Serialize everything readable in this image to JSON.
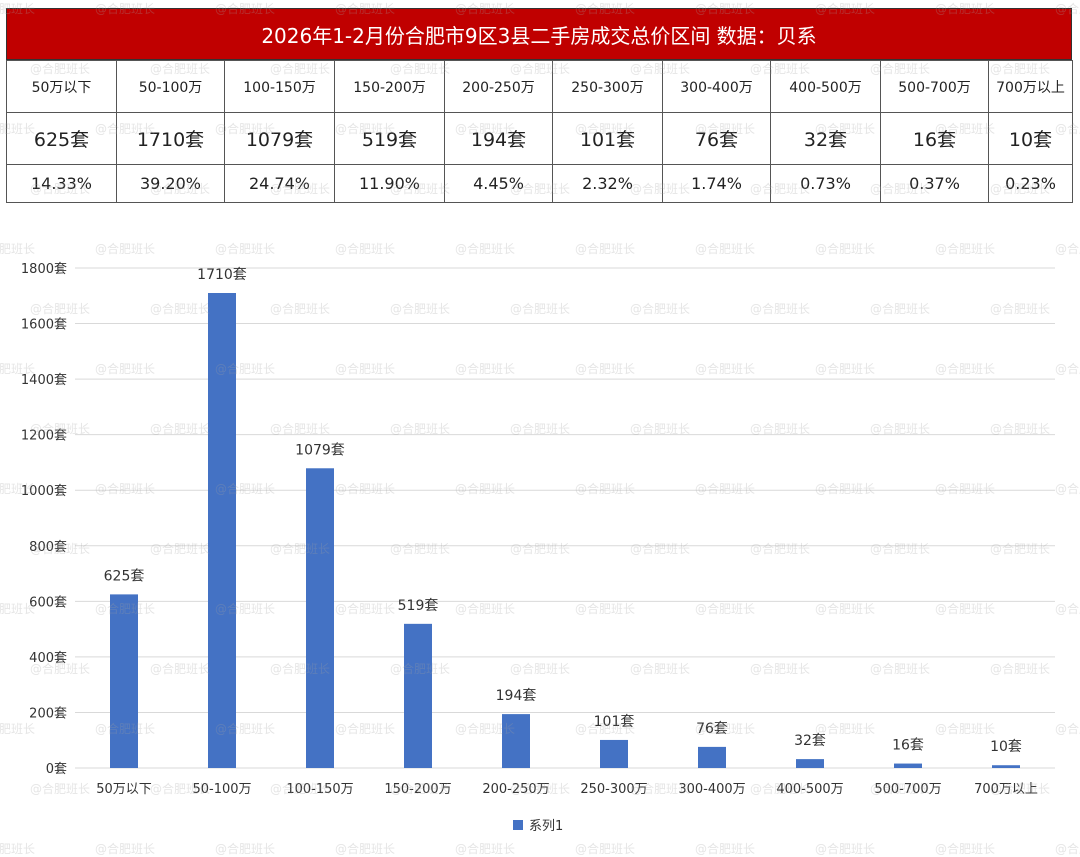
{
  "title": "2026年1-2月份合肥市9区3县二手房成交总价区间 数据：贝系",
  "watermark": "@合肥班长",
  "table": {
    "ranges": [
      "50万以下",
      "50-100万",
      "100-150万",
      "150-200万",
      "200-250万",
      "250-300万",
      "300-400万",
      "400-500万",
      "500-700万",
      "700万以上"
    ],
    "counts": [
      "625套",
      "1710套",
      "1079套",
      "519套",
      "194套",
      "101套",
      "76套",
      "32套",
      "16套",
      "10套"
    ],
    "percents": [
      "14.33%",
      "39.20%",
      "24.74%",
      "11.90%",
      "4.45%",
      "2.32%",
      "1.74%",
      "0.73%",
      "0.37%",
      "0.23%"
    ]
  },
  "colors": {
    "title_bg": "#c00000",
    "bar": "#4472c4"
  },
  "chart_data": {
    "type": "bar",
    "categories": [
      "50万以下",
      "50-100万",
      "100-150万",
      "150-200万",
      "200-250万",
      "250-300万",
      "300-400万",
      "400-500万",
      "500-700万",
      "700万以上"
    ],
    "series": [
      {
        "name": "系列1",
        "values": [
          625,
          1710,
          1079,
          519,
          194,
          101,
          76,
          32,
          16,
          10
        ]
      }
    ],
    "data_labels": [
      "625套",
      "1710套",
      "1079套",
      "519套",
      "194套",
      "101套",
      "76套",
      "32套",
      "16套",
      "10套"
    ],
    "ylim": [
      0,
      1800
    ],
    "yticks": [
      0,
      200,
      400,
      600,
      800,
      1000,
      1200,
      1400,
      1600,
      1800
    ],
    "ytick_labels": [
      "0套",
      "200套",
      "400套",
      "600套",
      "800套",
      "1000套",
      "1200套",
      "1400套",
      "1600套",
      "1800套"
    ],
    "grid": true,
    "legend": "bottom"
  }
}
